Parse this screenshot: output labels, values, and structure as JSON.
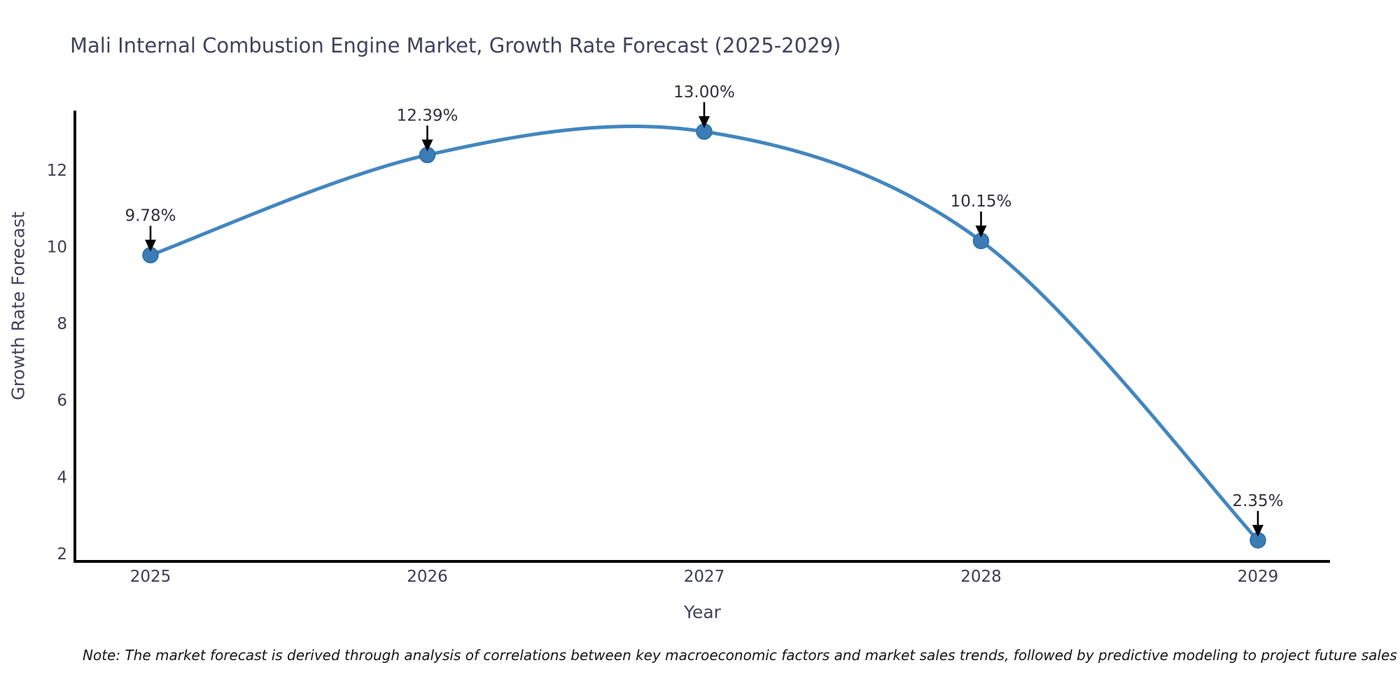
{
  "chart_data": {
    "type": "line",
    "title": "Mali Internal Combustion Engine Market, Growth Rate Forecast (2025-2029)",
    "xlabel": "Year",
    "ylabel": "Growth Rate Forecast",
    "categories": [
      "2025",
      "2026",
      "2027",
      "2028",
      "2029"
    ],
    "series": [
      {
        "name": "Growth Rate Forecast",
        "values": [
          9.78,
          12.39,
          13.0,
          10.15,
          2.35
        ],
        "point_labels": [
          "9.78%",
          "12.39%",
          "13.00%",
          "10.15%",
          "2.35%"
        ]
      }
    ],
    "yticks": [
      2,
      4,
      6,
      8,
      10,
      12
    ],
    "ylim": [
      1.8,
      13.51
    ],
    "grid": false,
    "legend": "none",
    "line_style": "smooth spline with circular markers and downward black arrow annotations",
    "note": "Note: The market forecast is derived through analysis of correlations between key macroeconomic factors and market sales trends, followed by predictive modeling to project future sales",
    "colors": {
      "line": "#4286bf",
      "marker_fill": "#3a7cb5",
      "marker_edge": "#2e6da4",
      "spine": "#000000",
      "tick_label": "#3c3c52",
      "axis_title": "#42425c",
      "title": "#42425c",
      "annotation_text": "#30303a",
      "annotation_arrow": "#000000",
      "note_text": "#151515",
      "background": "#ffffff"
    }
  }
}
